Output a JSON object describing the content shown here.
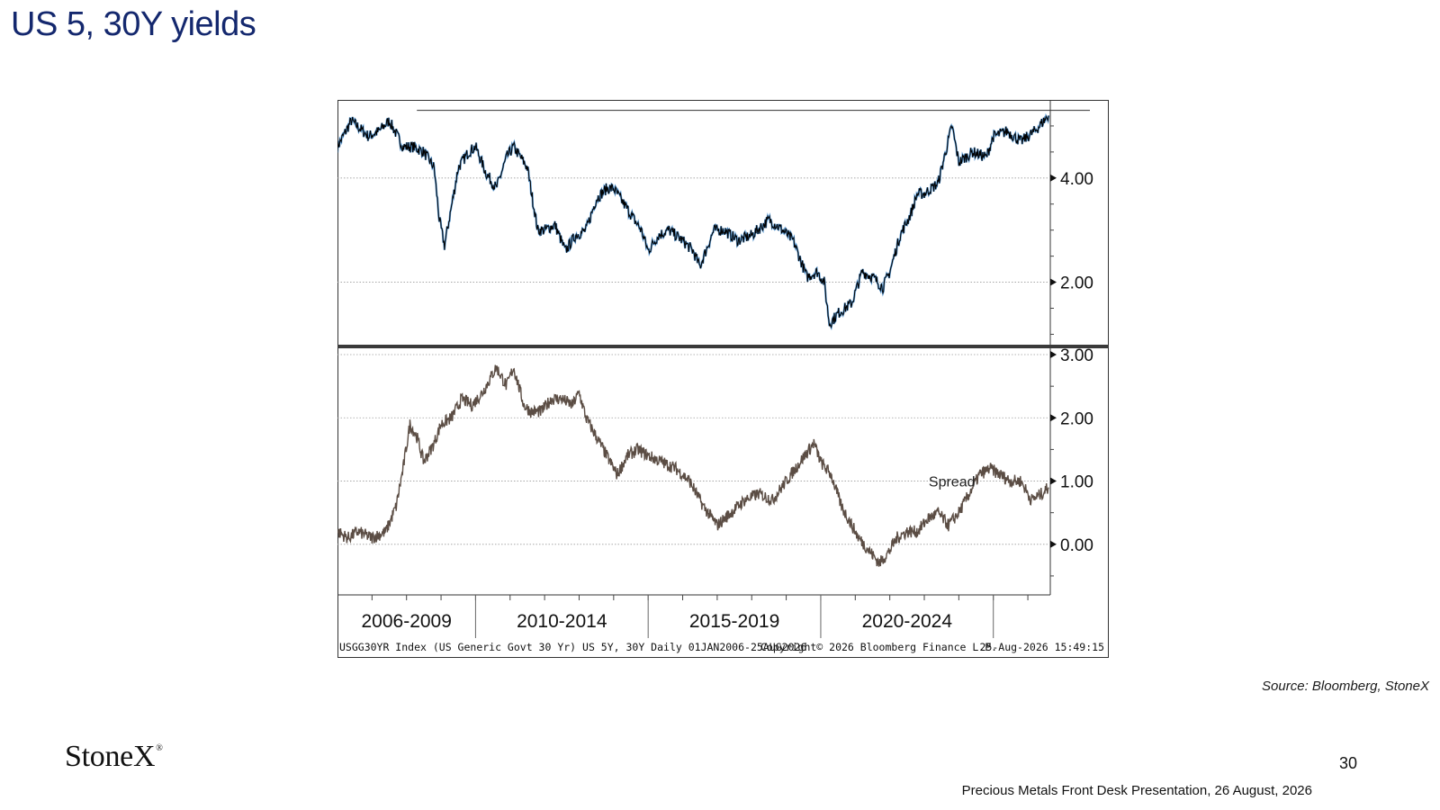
{
  "slide": {
    "title": "US 5, 30Y yields",
    "source": "Source: Bloomberg, StoneX",
    "logo_text": "StoneX",
    "logo_mark": "®",
    "page_number": "30",
    "footer": "Precious Metals Front Desk Presentation, 26 August, 2026"
  },
  "colors": {
    "title": "#14286e",
    "yield_line": "#000000",
    "yield_line_highlight": "#5b9bd5",
    "spread_line": "#5b4d44",
    "grid": "#9a9a9a",
    "frame": "#333333"
  },
  "chart_data": [
    {
      "type": "line",
      "panel": "top",
      "title": "",
      "xlabel": "",
      "ylabel": "",
      "x_range": [
        2006.0,
        2026.65
      ],
      "ylim": [
        0.8,
        5.5
      ],
      "yticks": [
        4.0,
        2.0
      ],
      "ytick_labels": [
        "4.00",
        "2.00"
      ],
      "grid": true,
      "reference_line": 5.3,
      "series": [
        {
          "x": [
            2006.0,
            2006.4,
            2006.9,
            2007.2,
            2007.5,
            2007.9,
            2008.2,
            2008.5,
            2008.8,
            2008.95,
            2009.1,
            2009.5,
            2009.8,
            2010.0,
            2010.3,
            2010.6,
            2010.9,
            2011.1,
            2011.5,
            2011.8,
            2012.0,
            2012.3,
            2012.6,
            2012.9,
            2013.2,
            2013.5,
            2013.8,
            2014.0,
            2014.4,
            2014.8,
            2015.0,
            2015.3,
            2015.6,
            2016.0,
            2016.3,
            2016.5,
            2016.9,
            2017.2,
            2017.6,
            2018.0,
            2018.5,
            2018.9,
            2019.2,
            2019.6,
            2019.9,
            2020.1,
            2020.25,
            2020.5,
            2020.9,
            2021.2,
            2021.5,
            2021.8,
            2022.0,
            2022.3,
            2022.6,
            2022.8,
            2023.0,
            2023.4,
            2023.8,
            2024.0,
            2024.4,
            2024.8,
            2025.0,
            2025.4,
            2025.8,
            2026.2,
            2026.6
          ],
          "y": [
            4.6,
            5.1,
            4.8,
            4.9,
            5.1,
            4.6,
            4.6,
            4.5,
            4.2,
            3.2,
            2.7,
            4.2,
            4.5,
            4.6,
            4.1,
            3.8,
            4.4,
            4.6,
            4.2,
            3.0,
            3.0,
            3.1,
            2.6,
            2.9,
            3.0,
            3.6,
            3.8,
            3.8,
            3.4,
            3.0,
            2.6,
            2.9,
            3.0,
            2.8,
            2.6,
            2.3,
            3.0,
            3.0,
            2.8,
            2.9,
            3.2,
            3.0,
            2.8,
            2.1,
            2.2,
            2.0,
            1.2,
            1.4,
            1.6,
            2.2,
            2.1,
            1.9,
            2.2,
            2.9,
            3.3,
            3.7,
            3.7,
            3.9,
            5.0,
            4.3,
            4.5,
            4.4,
            4.8,
            4.9,
            4.7,
            4.9,
            5.2
          ]
        }
      ]
    },
    {
      "type": "line",
      "panel": "bottom",
      "title": "",
      "xlabel": "",
      "ylabel": "",
      "x_range": [
        2006.0,
        2026.65
      ],
      "ylim": [
        -0.8,
        3.1
      ],
      "yticks": [
        3.0,
        2.0,
        1.0,
        0.0
      ],
      "ytick_labels": [
        "3.00",
        "2.00",
        "1.00",
        "0.00"
      ],
      "grid": true,
      "annotation": {
        "text": "Spread",
        "x": 2023.8,
        "y": 1.0
      },
      "x_period_labels": [
        {
          "label": "2006-2009",
          "center": 2008.0
        },
        {
          "label": "2010-2014",
          "center": 2012.5
        },
        {
          "label": "2015-2019",
          "center": 2017.5
        },
        {
          "label": "2020-2024",
          "center": 2022.5
        }
      ],
      "x_period_boundaries": [
        2010.0,
        2015.0,
        2020.0,
        2025.0
      ],
      "footer_texts": [
        "USGG30YR Index (US Generic Govt 30 Yr) US 5Y, 30Y Daily 01JAN2006-25AUG2026",
        "Copyright© 2026 Bloomberg Finance L.P.",
        "25-Aug-2026 15:49:15"
      ],
      "series": [
        {
          "name": "Spread",
          "x": [
            2006.0,
            2006.3,
            2006.6,
            2007.0,
            2007.4,
            2007.7,
            2007.9,
            2008.1,
            2008.3,
            2008.5,
            2008.8,
            2009.0,
            2009.3,
            2009.6,
            2009.9,
            2010.2,
            2010.6,
            2010.9,
            2011.1,
            2011.4,
            2011.6,
            2011.9,
            2012.2,
            2012.5,
            2012.8,
            2013.0,
            2013.2,
            2013.5,
            2013.8,
            2014.1,
            2014.4,
            2014.7,
            2015.0,
            2015.4,
            2015.8,
            2016.2,
            2016.6,
            2017.0,
            2017.4,
            2017.8,
            2018.2,
            2018.6,
            2019.0,
            2019.4,
            2019.8,
            2020.0,
            2020.3,
            2020.6,
            2020.9,
            2021.1,
            2021.4,
            2021.7,
            2022.0,
            2022.2,
            2022.5,
            2022.8,
            2023.1,
            2023.4,
            2023.7,
            2024.0,
            2024.3,
            2024.6,
            2024.9,
            2025.2,
            2025.5,
            2025.8,
            2026.1,
            2026.4,
            2026.6
          ],
          "y": [
            0.2,
            0.1,
            0.2,
            0.1,
            0.2,
            0.6,
            1.2,
            1.9,
            1.7,
            1.3,
            1.6,
            1.9,
            2.0,
            2.3,
            2.2,
            2.4,
            2.8,
            2.5,
            2.8,
            2.2,
            2.1,
            2.1,
            2.3,
            2.3,
            2.2,
            2.4,
            2.0,
            1.7,
            1.4,
            1.1,
            1.4,
            1.5,
            1.4,
            1.3,
            1.2,
            1.0,
            0.6,
            0.3,
            0.5,
            0.7,
            0.8,
            0.7,
            1.0,
            1.3,
            1.6,
            1.3,
            1.1,
            0.6,
            0.3,
            0.1,
            -0.1,
            -0.3,
            -0.1,
            0.1,
            0.2,
            0.2,
            0.4,
            0.5,
            0.3,
            0.5,
            0.8,
            1.1,
            1.2,
            1.1,
            1.0,
            1.0,
            0.7,
            0.8,
            0.9
          ]
        }
      ]
    }
  ]
}
